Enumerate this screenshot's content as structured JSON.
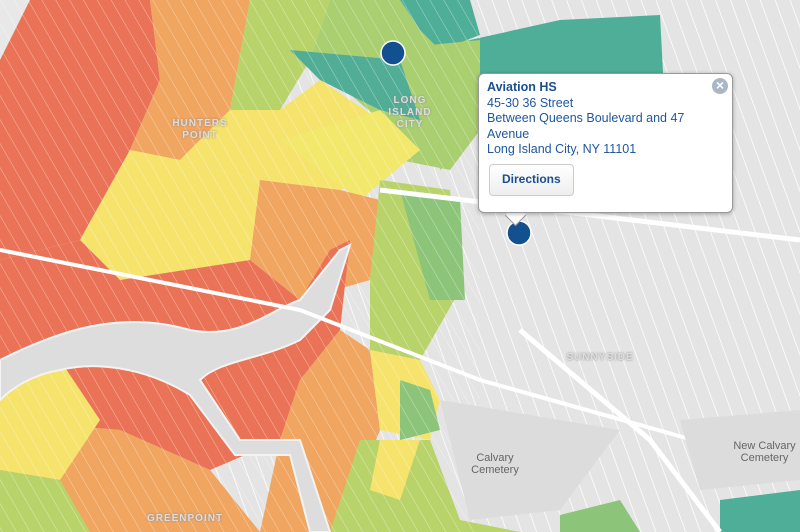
{
  "map": {
    "labels": [
      {
        "text": "HUNTERS POINT"
      },
      {
        "text": "LONG ISLAND CITY"
      },
      {
        "text": "SUNNYSIDE"
      },
      {
        "text": "Calvary Cemetery"
      },
      {
        "text": "New Calvary Cemetery"
      },
      {
        "text": "GREENPOINT"
      }
    ]
  },
  "popup": {
    "title": "Aviation HS",
    "lines": [
      "45-30 36 Street",
      "Between Queens Boulevard and 47 Avenue",
      "Long Island City, NY 11101"
    ],
    "button": "Directions"
  }
}
